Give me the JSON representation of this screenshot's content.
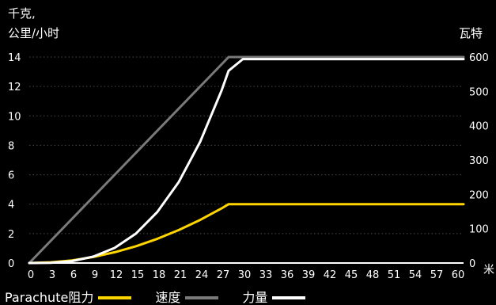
{
  "chart_data": {
    "type": "line",
    "left_axis_label_line1": "千克,",
    "left_axis_label_line2": "公里/小时",
    "right_axis_label": "瓦特",
    "x_unit": "米",
    "x_ticks": [
      "0",
      "3",
      "6",
      "9",
      "12",
      "15",
      "18",
      "21",
      "24",
      "27",
      "30",
      "33",
      "36",
      "39",
      "42",
      "45",
      "48",
      "51",
      "54",
      "57",
      "60"
    ],
    "y_left_ticks": [
      "0",
      "2",
      "4",
      "6",
      "8",
      "10",
      "12",
      "14"
    ],
    "y_right_ticks": [
      "0",
      "100",
      "200",
      "300",
      "400",
      "500",
      "600"
    ],
    "xlim": [
      0,
      61
    ],
    "ylim_left": [
      0,
      14
    ],
    "ylim_right": [
      0,
      600
    ],
    "grid": true,
    "series": [
      {
        "name": "Parachute阻力",
        "axis": "left",
        "color": "#ffd500",
        "x": [
          0,
          3,
          6,
          9,
          12,
          15,
          18,
          21,
          24,
          27,
          28,
          30,
          40,
          50,
          61
        ],
        "y": [
          0,
          0.05,
          0.18,
          0.41,
          0.73,
          1.14,
          1.65,
          2.24,
          2.93,
          3.71,
          4.0,
          4.0,
          4.0,
          4.0,
          4.0
        ]
      },
      {
        "name": "速度",
        "axis": "left",
        "color": "#7a7a7a",
        "x": [
          0,
          28,
          61
        ],
        "y": [
          0,
          14,
          14
        ]
      },
      {
        "name": "力量",
        "axis": "right",
        "color": "#ffffff",
        "x": [
          0,
          3,
          6,
          9,
          12,
          15,
          18,
          21,
          24,
          27,
          28,
          30,
          40,
          50,
          61
        ],
        "y": [
          0,
          0.7,
          5.5,
          18.6,
          44,
          86,
          149,
          236,
          353,
          502,
          560,
          594,
          594,
          594,
          594
        ]
      }
    ]
  },
  "legend": [
    {
      "label": "Parachute阻力",
      "color": "#ffd500"
    },
    {
      "label": "速度",
      "color": "#7a7a7a"
    },
    {
      "label": "力量",
      "color": "#ffffff"
    }
  ]
}
